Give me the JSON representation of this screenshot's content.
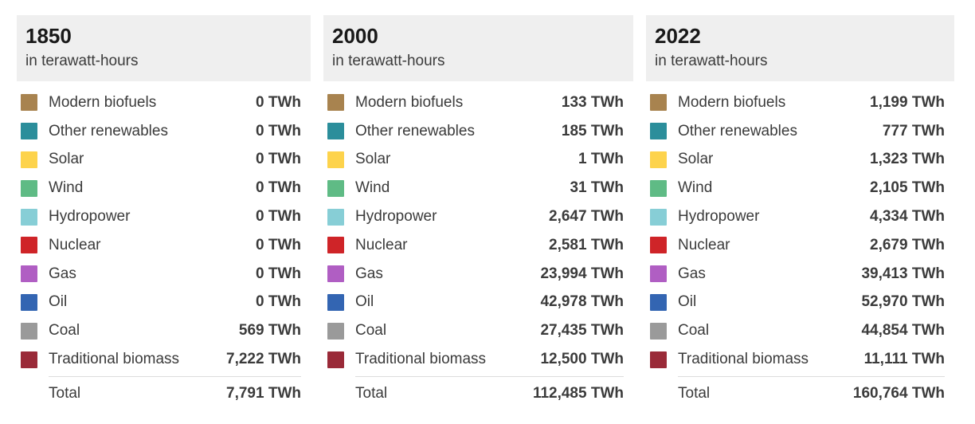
{
  "unit": "TWh",
  "total_label": "Total",
  "subtitle": "in terawatt-hours",
  "source_colors": {
    "Modern biofuels": "#a8834f",
    "Other renewables": "#2b8e9b",
    "Solar": "#fdd34c",
    "Wind": "#5fbb85",
    "Hydropower": "#87ced6",
    "Nuclear": "#cf2428",
    "Gas": "#b05ec3",
    "Oil": "#3365b2",
    "Coal": "#9a9a9a",
    "Traditional biomass": "#9a2a38"
  },
  "header_bg_color": "#efefef",
  "chart_data": {
    "type": "table",
    "unit": "TWh",
    "subtitle": "in terawatt-hours",
    "categories": [
      "Modern biofuels",
      "Other renewables",
      "Solar",
      "Wind",
      "Hydropower",
      "Nuclear",
      "Gas",
      "Oil",
      "Coal",
      "Traditional biomass"
    ],
    "category_colors": [
      "#a8834f",
      "#2b8e9b",
      "#fdd34c",
      "#5fbb85",
      "#87ced6",
      "#cf2428",
      "#b05ec3",
      "#3365b2",
      "#9a9a9a",
      "#9a2a38"
    ],
    "series": [
      {
        "name": "1850",
        "values": [
          0,
          0,
          0,
          0,
          0,
          0,
          0,
          0,
          569,
          7222
        ],
        "total": 7791
      },
      {
        "name": "2000",
        "values": [
          133,
          185,
          1,
          31,
          2647,
          2581,
          23994,
          42978,
          27435,
          12500
        ],
        "total": 112485
      },
      {
        "name": "2022",
        "values": [
          1199,
          777,
          1323,
          2105,
          4334,
          2679,
          39413,
          52970,
          44854,
          11111
        ],
        "total": 160764
      }
    ],
    "legend_position": "left-swatches",
    "grid": false
  },
  "panels": [
    {
      "year": "1850",
      "subtitle": "in terawatt-hours",
      "rows": [
        {
          "label": "Modern biofuels",
          "value": "0 TWh",
          "color": "#a8834f"
        },
        {
          "label": "Other renewables",
          "value": "0 TWh",
          "color": "#2b8e9b"
        },
        {
          "label": "Solar",
          "value": "0 TWh",
          "color": "#fdd34c"
        },
        {
          "label": "Wind",
          "value": "0 TWh",
          "color": "#5fbb85"
        },
        {
          "label": "Hydropower",
          "value": "0 TWh",
          "color": "#87ced6"
        },
        {
          "label": "Nuclear",
          "value": "0 TWh",
          "color": "#cf2428"
        },
        {
          "label": "Gas",
          "value": "0 TWh",
          "color": "#b05ec3"
        },
        {
          "label": "Oil",
          "value": "0 TWh",
          "color": "#3365b2"
        },
        {
          "label": "Coal",
          "value": "569 TWh",
          "color": "#9a9a9a"
        },
        {
          "label": "Traditional biomass",
          "value": "7,222 TWh",
          "color": "#9a2a38"
        }
      ],
      "total": {
        "label": "Total",
        "value": "7,791 TWh"
      }
    },
    {
      "year": "2000",
      "subtitle": "in terawatt-hours",
      "rows": [
        {
          "label": "Modern biofuels",
          "value": "133 TWh",
          "color": "#a8834f"
        },
        {
          "label": "Other renewables",
          "value": "185 TWh",
          "color": "#2b8e9b"
        },
        {
          "label": "Solar",
          "value": "1 TWh",
          "color": "#fdd34c"
        },
        {
          "label": "Wind",
          "value": "31 TWh",
          "color": "#5fbb85"
        },
        {
          "label": "Hydropower",
          "value": "2,647 TWh",
          "color": "#87ced6"
        },
        {
          "label": "Nuclear",
          "value": "2,581 TWh",
          "color": "#cf2428"
        },
        {
          "label": "Gas",
          "value": "23,994 TWh",
          "color": "#b05ec3"
        },
        {
          "label": "Oil",
          "value": "42,978 TWh",
          "color": "#3365b2"
        },
        {
          "label": "Coal",
          "value": "27,435 TWh",
          "color": "#9a9a9a"
        },
        {
          "label": "Traditional biomass",
          "value": "12,500 TWh",
          "color": "#9a2a38"
        }
      ],
      "total": {
        "label": "Total",
        "value": "112,485 TWh"
      }
    },
    {
      "year": "2022",
      "subtitle": "in terawatt-hours",
      "rows": [
        {
          "label": "Modern biofuels",
          "value": "1,199 TWh",
          "color": "#a8834f"
        },
        {
          "label": "Other renewables",
          "value": "777 TWh",
          "color": "#2b8e9b"
        },
        {
          "label": "Solar",
          "value": "1,323 TWh",
          "color": "#fdd34c"
        },
        {
          "label": "Wind",
          "value": "2,105 TWh",
          "color": "#5fbb85"
        },
        {
          "label": "Hydropower",
          "value": "4,334 TWh",
          "color": "#87ced6"
        },
        {
          "label": "Nuclear",
          "value": "2,679 TWh",
          "color": "#cf2428"
        },
        {
          "label": "Gas",
          "value": "39,413 TWh",
          "color": "#b05ec3"
        },
        {
          "label": "Oil",
          "value": "52,970 TWh",
          "color": "#3365b2"
        },
        {
          "label": "Coal",
          "value": "44,854 TWh",
          "color": "#9a9a9a"
        },
        {
          "label": "Traditional biomass",
          "value": "11,111 TWh",
          "color": "#9a2a38"
        }
      ],
      "total": {
        "label": "Total",
        "value": "160,764 TWh"
      }
    }
  ]
}
